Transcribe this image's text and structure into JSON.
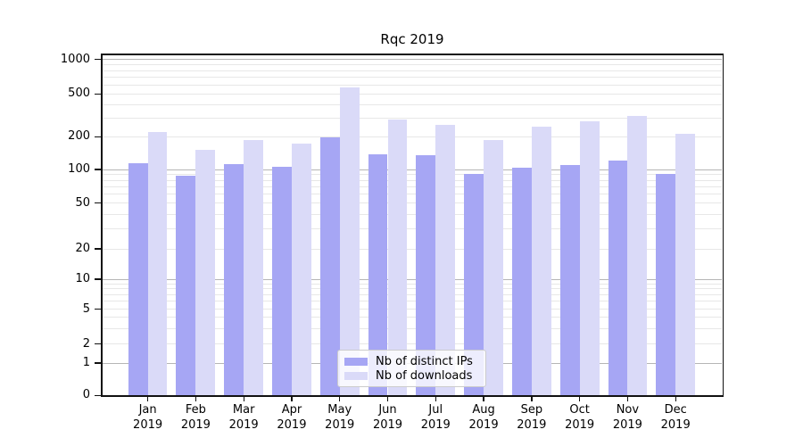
{
  "chart_data": {
    "type": "bar",
    "title": "Rqc 2019",
    "categories": [
      "Jan 2019",
      "Feb 2019",
      "Mar 2019",
      "Apr 2019",
      "May 2019",
      "Jun 2019",
      "Jul 2019",
      "Aug 2019",
      "Sep 2019",
      "Oct 2019",
      "Nov 2019",
      "Dec 2019"
    ],
    "series": [
      {
        "name": "Nb of distinct IPs",
        "color": "#a6a6f4",
        "values": [
          115,
          88,
          113,
          105,
          198,
          139,
          136,
          92,
          104,
          109,
          121,
          92
        ]
      },
      {
        "name": "Nb of downloads",
        "color": "#dadaf8",
        "values": [
          220,
          151,
          186,
          172,
          567,
          292,
          257,
          185,
          247,
          280,
          315,
          215
        ]
      }
    ],
    "yscale": "symlog",
    "yticks": [
      0,
      1,
      2,
      5,
      10,
      20,
      50,
      100,
      200,
      500,
      1000
    ],
    "ylim": [
      0,
      1100
    ],
    "xlabel": "",
    "ylabel": "",
    "grid": "on",
    "legend_position": "lower-center"
  },
  "colors": {
    "major_grid": "#b5b5b5",
    "minor_grid": "#e7e7e7",
    "axis": "#111111",
    "background": "#ffffff"
  }
}
